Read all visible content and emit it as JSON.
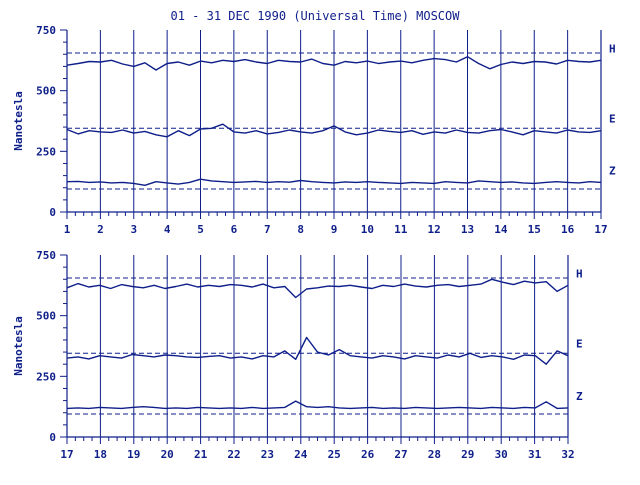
{
  "title": "01 - 31 DEC 1990 (Universal Time) MOSCOW",
  "colors": {
    "ink": "#0f1f8a",
    "background": "#ffffff"
  },
  "chart_data": [
    {
      "type": "line",
      "ylabel": "Nanotesla",
      "ylim": [
        0,
        750
      ],
      "yticks": [
        0,
        250,
        500,
        750
      ],
      "xlim": [
        1,
        17
      ],
      "xticks": [
        1,
        2,
        3,
        4,
        5,
        6,
        7,
        8,
        9,
        10,
        11,
        12,
        13,
        14,
        15,
        16,
        17
      ],
      "reference_lines": [
        655,
        345,
        95
      ],
      "series": [
        {
          "name": "H",
          "values": [
            605,
            612,
            620,
            618,
            625,
            610,
            600,
            615,
            585,
            612,
            618,
            605,
            622,
            615,
            625,
            620,
            628,
            618,
            612,
            625,
            620,
            618,
            630,
            612,
            605,
            620,
            615,
            622,
            612,
            618,
            622,
            615,
            625,
            632,
            628,
            618,
            640,
            612,
            590,
            608,
            618,
            612,
            620,
            618,
            610,
            625,
            620,
            618,
            625
          ]
        },
        {
          "name": "E",
          "values": [
            340,
            322,
            335,
            330,
            328,
            338,
            325,
            332,
            318,
            310,
            335,
            315,
            342,
            345,
            362,
            330,
            325,
            335,
            322,
            328,
            338,
            330,
            325,
            335,
            355,
            330,
            318,
            325,
            338,
            332,
            328,
            335,
            320,
            330,
            325,
            338,
            328,
            325,
            335,
            340,
            330,
            318,
            335,
            330,
            325,
            338,
            330,
            328,
            335
          ]
        },
        {
          "name": "Z",
          "values": [
            125,
            126,
            122,
            124,
            120,
            122,
            118,
            110,
            125,
            120,
            115,
            122,
            135,
            128,
            125,
            122,
            124,
            126,
            122,
            125,
            123,
            130,
            125,
            122,
            120,
            124,
            122,
            125,
            122,
            120,
            118,
            122,
            120,
            118,
            125,
            122,
            120,
            128,
            125,
            122,
            124,
            120,
            118,
            122,
            125,
            122,
            120,
            125,
            122
          ]
        }
      ]
    },
    {
      "type": "line",
      "ylabel": "Nanotesla",
      "ylim": [
        0,
        750
      ],
      "yticks": [
        0,
        250,
        500,
        750
      ],
      "xlim": [
        17,
        32
      ],
      "xticks": [
        17,
        18,
        19,
        20,
        21,
        22,
        23,
        24,
        25,
        26,
        27,
        28,
        29,
        30,
        31,
        32
      ],
      "reference_lines": [
        655,
        345,
        95
      ],
      "series": [
        {
          "name": "H",
          "values": [
            615,
            632,
            618,
            625,
            612,
            628,
            620,
            615,
            625,
            612,
            620,
            630,
            618,
            625,
            620,
            628,
            625,
            618,
            630,
            615,
            620,
            575,
            610,
            615,
            622,
            620,
            625,
            618,
            612,
            625,
            620,
            630,
            622,
            618,
            625,
            628,
            620,
            625,
            630,
            650,
            638,
            628,
            642,
            635,
            640,
            600,
            625
          ]
        },
        {
          "name": "E",
          "values": [
            325,
            330,
            322,
            335,
            330,
            325,
            340,
            335,
            330,
            338,
            335,
            330,
            328,
            332,
            335,
            325,
            330,
            322,
            335,
            330,
            355,
            320,
            410,
            350,
            338,
            360,
            335,
            330,
            325,
            335,
            330,
            322,
            335,
            330,
            325,
            338,
            330,
            345,
            328,
            335,
            330,
            320,
            338,
            335,
            300,
            355,
            335
          ]
        },
        {
          "name": "Z",
          "values": [
            118,
            120,
            118,
            122,
            120,
            118,
            122,
            125,
            122,
            118,
            120,
            118,
            122,
            120,
            118,
            120,
            118,
            122,
            118,
            120,
            122,
            148,
            125,
            122,
            125,
            120,
            118,
            120,
            122,
            118,
            120,
            118,
            122,
            120,
            118,
            120,
            122,
            120,
            118,
            122,
            120,
            118,
            122,
            120,
            145,
            118,
            120
          ]
        }
      ]
    }
  ]
}
